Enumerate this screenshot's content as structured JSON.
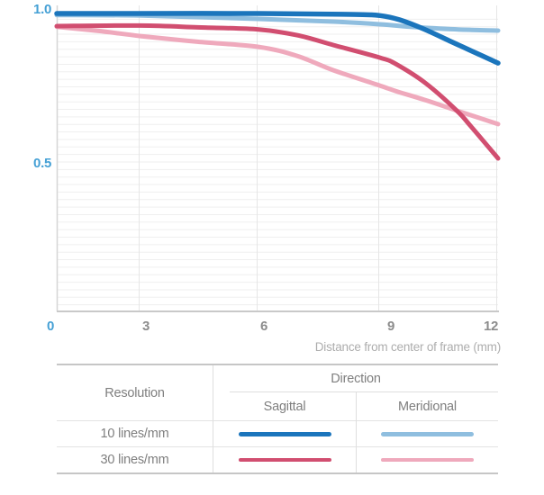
{
  "chart": {
    "y_axis_color_hex": "#45a0d5",
    "x_axis_number_color_hex": "#8c8c8c",
    "caption_color_hex": "#adadad"
  },
  "chart_data": {
    "type": "line",
    "xlabel": "Distance from center of frame (mm)",
    "ylabel": "",
    "xlim": [
      0,
      12
    ],
    "ylim": [
      0,
      1.0
    ],
    "x_ticks": [
      0,
      3,
      6,
      9,
      12
    ],
    "x_tick_labels": [
      "0",
      "3",
      "6",
      "9",
      "12"
    ],
    "y_ticks": [
      1.0,
      0.5
    ],
    "y_tick_labels": [
      "1.0",
      "0.5"
    ],
    "grid": "fine horizontal lines every 0.025, vertical lines at each x tick",
    "legend_position": "bottom-table",
    "series": [
      {
        "name": "10 lines/mm Sagittal",
        "color": "#1b75bc",
        "width": 5.5,
        "x": [
          0,
          3,
          6,
          8.3,
          9,
          9.5,
          10.1,
          10.8,
          11.35,
          12
        ],
        "y": [
          0.994,
          0.994,
          0.994,
          0.991,
          0.987,
          0.973,
          0.943,
          0.901,
          0.868,
          0.829
        ]
      },
      {
        "name": "10 lines/mm Meridional",
        "color": "#8fbedf",
        "width": 5,
        "x": [
          0,
          3,
          6,
          7.85,
          9,
          9.85,
          10.8,
          11.45,
          12
        ],
        "y": [
          0.989,
          0.987,
          0.976,
          0.967,
          0.958,
          0.949,
          0.942,
          0.939,
          0.937
        ]
      },
      {
        "name": "30 lines/mm Sagittal",
        "color": "#d14e70",
        "width": 5,
        "x": [
          0,
          3,
          4.45,
          6,
          6.95,
          7.85,
          9,
          9.4,
          10.15,
          10.95,
          11.3,
          12
        ],
        "y": [
          0.952,
          0.954,
          0.948,
          0.941,
          0.922,
          0.889,
          0.847,
          0.826,
          0.763,
          0.671,
          0.62,
          0.512
        ]
      },
      {
        "name": "30 lines/mm Meridional",
        "color": "#efa9bc",
        "width": 5,
        "x": [
          0,
          1.5,
          3,
          4.45,
          6,
          6.95,
          7.85,
          9,
          9.4,
          10.2,
          10.95,
          12
        ],
        "y": [
          0.95,
          0.936,
          0.919,
          0.9,
          0.883,
          0.853,
          0.805,
          0.754,
          0.736,
          0.704,
          0.671,
          0.626
        ]
      }
    ]
  },
  "legend_table": {
    "resolution_header": "Resolution",
    "direction_header": "Direction",
    "sagittal_header": "Sagittal",
    "meridional_header": "Meridional",
    "rows": [
      {
        "label": "10 lines/mm"
      },
      {
        "label": "30 lines/mm"
      }
    ]
  }
}
